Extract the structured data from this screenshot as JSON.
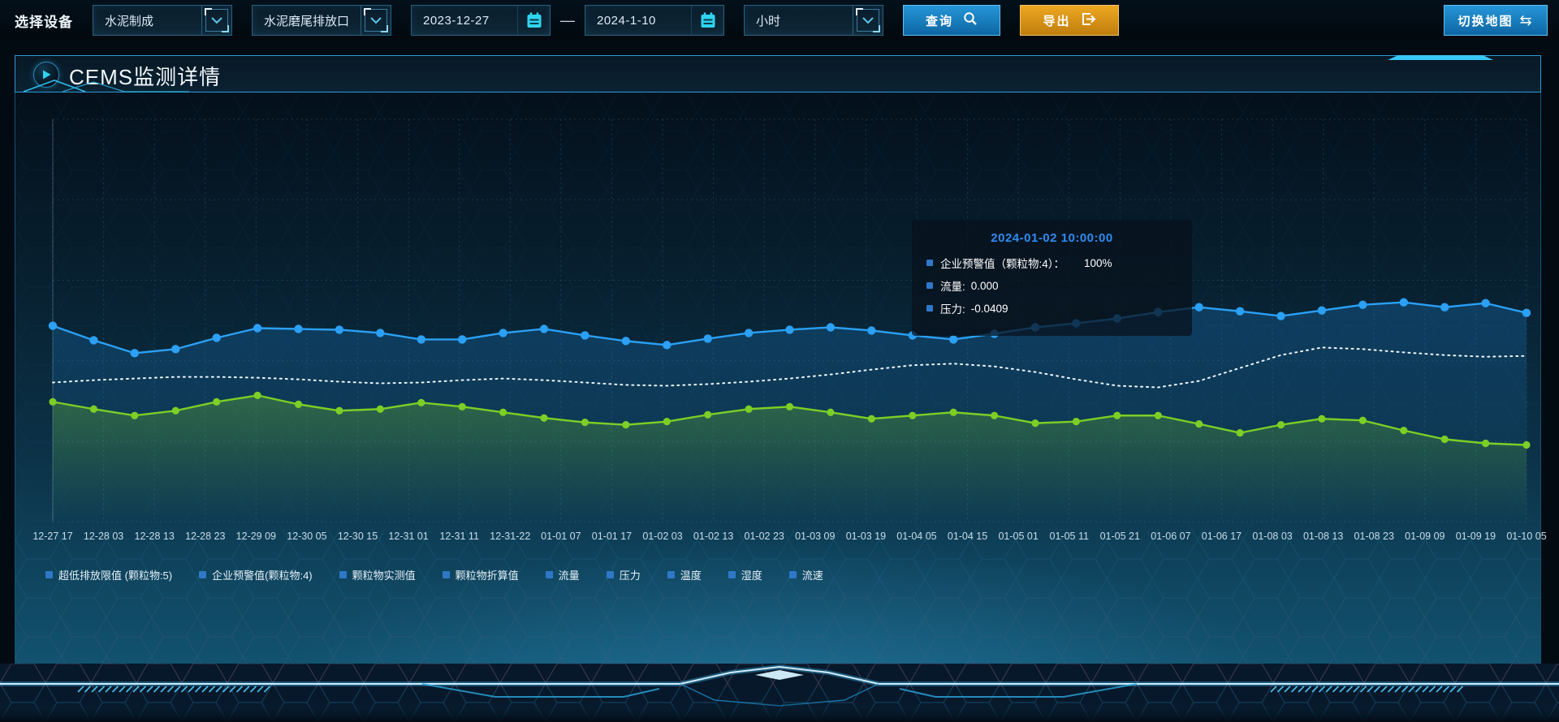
{
  "toolbar": {
    "device_label": "选择设备",
    "select_category": "水泥制成",
    "select_outlet": "水泥磨尾排放口",
    "date_start": "2023-12-27",
    "date_separator": "—",
    "date_end": "2024-1-10",
    "select_interval": "小时",
    "query_button": "查询",
    "export_button": "导出",
    "switch_map_button": "切换地图",
    "switch_map_glyph": "⇆"
  },
  "panel": {
    "title": "CEMS监测详情"
  },
  "tooltip": {
    "title": "2024-01-02 10:00:00",
    "rows": [
      {
        "label": "企业预警值（颗粒物:4）：",
        "value": "100%"
      },
      {
        "label": "流量:",
        "value": "0.000"
      },
      {
        "label": "压力:",
        "value": "-0.0409"
      }
    ]
  },
  "legend": [
    "超低排放限值 (颗粒物:5)",
    "企业预警值(颗粒物:4)",
    "颗粒物实测值",
    "颗粒物折算值",
    "流量",
    "压力",
    "温度",
    "湿度",
    "流速"
  ],
  "colors": {
    "accent_cyan": "#38c8f5",
    "header_border": "#2b9bd6",
    "query_blue": "#1a82c4",
    "export_orange": "#d7941a",
    "tooltip_title_blue": "#2e8bf0",
    "legend_marker_blue": "#2f78c8",
    "series_blue": "#2ba0f5",
    "series_green": "#7ccf25",
    "series_white": "#eef6fb"
  },
  "chart_data": {
    "type": "line",
    "title": "",
    "xlabel": "",
    "ylabel": "",
    "grid": true,
    "legend_position": "bottom",
    "y_axis_labels_visible": false,
    "note": "no y-axis tick labels are shown on screen; series values are estimated as percent of plot height from the bottom",
    "x_labels": [
      "12-27 17",
      "12-28 03",
      "12-28 13",
      "12-28 23",
      "12-29 09",
      "12-30 05",
      "12-30 15",
      "12-31 01",
      "12-31 11",
      "12-31-22",
      "01-01 07",
      "01-01 17",
      "01-02 03",
      "01-02 13",
      "01-02 23",
      "01-03 09",
      "01-03 19",
      "01-04 05",
      "01-04 15",
      "01-05 01",
      "01-05 11",
      "01-05 21",
      "01-06 07",
      "01-06 17",
      "01-08 03",
      "01-08 13",
      "01-08 23",
      "01-09 09",
      "01-09 19",
      "01-10 05"
    ],
    "highlighted_point": "2024-01-02 10:00:00",
    "series": [
      {
        "name": "企业预警值(颗粒物:4)",
        "color": "#2ba0f5",
        "style": "solid",
        "markers": true,
        "area": true,
        "values": [
          48.7,
          45.1,
          41.9,
          42.9,
          45.7,
          48.1,
          47.9,
          47.7,
          46.9,
          45.3,
          45.3,
          46.9,
          47.9,
          46.3,
          44.9,
          43.9,
          45.5,
          46.9,
          47.7,
          48.3,
          47.5,
          46.3,
          45.3,
          46.7,
          48.3,
          49.3,
          50.5,
          52.1,
          53.3,
          52.3,
          51.1,
          52.5,
          53.9,
          54.5,
          53.3,
          54.3,
          51.9
        ]
      },
      {
        "name": "流量",
        "color": "#eef6fb",
        "style": "dotted",
        "markers": false,
        "area": false,
        "values": [
          34.6,
          35.2,
          35.6,
          36.0,
          36.0,
          35.8,
          35.4,
          34.8,
          34.4,
          34.6,
          35.2,
          35.6,
          35.2,
          34.6,
          34.0,
          33.8,
          34.2,
          34.8,
          35.6,
          36.6,
          37.8,
          38.9,
          39.3,
          38.6,
          37.2,
          35.4,
          33.8,
          33.4,
          35.0,
          38.2,
          41.4,
          43.3,
          42.9,
          42.1,
          41.4,
          41.0,
          41.2
        ]
      },
      {
        "name": "压力",
        "color": "#7ccf25",
        "style": "solid",
        "markers": true,
        "area": true,
        "values": [
          29.8,
          28.0,
          26.4,
          27.6,
          29.8,
          31.4,
          29.2,
          27.6,
          28.0,
          29.6,
          28.6,
          27.2,
          25.8,
          24.7,
          24.1,
          24.9,
          26.6,
          28.0,
          28.6,
          27.2,
          25.6,
          26.4,
          27.2,
          26.4,
          24.5,
          24.9,
          26.4,
          26.4,
          24.3,
          22.1,
          24.1,
          25.6,
          25.2,
          22.7,
          20.5,
          19.5,
          19.1
        ]
      }
    ]
  }
}
